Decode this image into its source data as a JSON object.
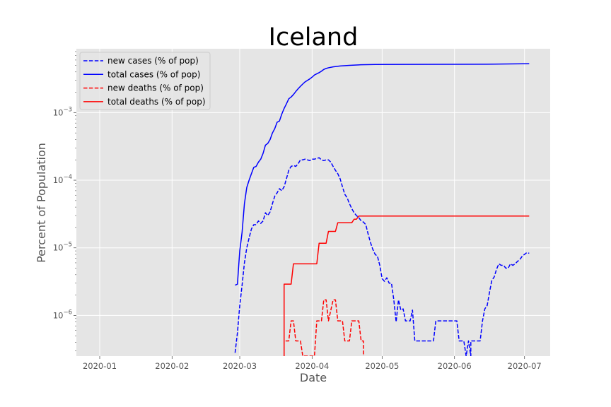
{
  "chart_data": {
    "type": "line",
    "title": "Iceland",
    "xlabel": "Date",
    "ylabel": "Percent of Population",
    "y_scale": "log",
    "grid": true,
    "legend_position": "top-left",
    "xlim": [
      "2019-12-22",
      "2020-07-12"
    ],
    "ylim": [
      2.5e-07,
      0.0088
    ],
    "x_ticks": [
      "2020-01",
      "2020-02",
      "2020-03",
      "2020-04",
      "2020-05",
      "2020-06",
      "2020-07"
    ],
    "y_ticks": [
      {
        "value": 1e-06,
        "base": "10",
        "exp": "−6"
      },
      {
        "value": 1e-05,
        "base": "10",
        "exp": "−5"
      },
      {
        "value": 0.0001,
        "base": "10",
        "exp": "−4"
      },
      {
        "value": 0.001,
        "base": "10",
        "exp": "−3"
      }
    ],
    "series": [
      {
        "name": "new cases (% of pop)",
        "color": "#0000ff",
        "dash": "dashed",
        "points": [
          [
            "2020-02-28",
            2.8e-07
          ],
          [
            "2020-02-29",
            5.5e-07
          ],
          [
            "2020-03-01",
            1.4e-06
          ],
          [
            "2020-03-02",
            2.8e-06
          ],
          [
            "2020-03-03",
            6e-06
          ],
          [
            "2020-03-04",
            1e-05
          ],
          [
            "2020-03-05",
            1.4e-05
          ],
          [
            "2020-03-06",
            1.9e-05
          ],
          [
            "2020-03-07",
            2.2e-05
          ],
          [
            "2020-03-08",
            2.2e-05
          ],
          [
            "2020-03-09",
            2.5e-05
          ],
          [
            "2020-03-10",
            2.3e-05
          ],
          [
            "2020-03-11",
            2.5e-05
          ],
          [
            "2020-03-12",
            3.3e-05
          ],
          [
            "2020-03-13",
            3e-05
          ],
          [
            "2020-03-14",
            3.4e-05
          ],
          [
            "2020-03-15",
            4.5e-05
          ],
          [
            "2020-03-16",
            5.8e-05
          ],
          [
            "2020-03-17",
            6.5e-05
          ],
          [
            "2020-03-18",
            7.5e-05
          ],
          [
            "2020-03-19",
            7e-05
          ],
          [
            "2020-03-20",
            8e-05
          ],
          [
            "2020-03-21",
            0.000105
          ],
          [
            "2020-03-22",
            0.00014
          ],
          [
            "2020-03-23",
            0.00016
          ],
          [
            "2020-03-24",
            0.000165
          ],
          [
            "2020-03-25",
            0.00016
          ],
          [
            "2020-03-26",
            0.000175
          ],
          [
            "2020-03-27",
            0.0002
          ],
          [
            "2020-03-28",
            0.0002
          ],
          [
            "2020-03-29",
            0.000205
          ],
          [
            "2020-03-30",
            0.0002
          ],
          [
            "2020-03-31",
            0.000195
          ],
          [
            "2020-04-01",
            0.000205
          ],
          [
            "2020-04-02",
            0.000205
          ],
          [
            "2020-04-03",
            0.00021
          ],
          [
            "2020-04-04",
            0.000215
          ],
          [
            "2020-04-05",
            0.0002
          ],
          [
            "2020-04-06",
            0.000195
          ],
          [
            "2020-04-07",
            0.0002
          ],
          [
            "2020-04-08",
            0.0002
          ],
          [
            "2020-04-09",
            0.000185
          ],
          [
            "2020-04-10",
            0.00016
          ],
          [
            "2020-04-11",
            0.00014
          ],
          [
            "2020-04-12",
            0.000125
          ],
          [
            "2020-04-13",
            0.000105
          ],
          [
            "2020-04-14",
            8e-05
          ],
          [
            "2020-04-15",
            6.2e-05
          ],
          [
            "2020-04-16",
            5.5e-05
          ],
          [
            "2020-04-17",
            4.5e-05
          ],
          [
            "2020-04-18",
            3.8e-05
          ],
          [
            "2020-04-19",
            3.3e-05
          ],
          [
            "2020-04-20",
            3e-05
          ],
          [
            "2020-04-21",
            2.8e-05
          ],
          [
            "2020-04-22",
            2.5e-05
          ],
          [
            "2020-04-23",
            2.4e-05
          ],
          [
            "2020-04-24",
            2.2e-05
          ],
          [
            "2020-04-25",
            1.6e-05
          ],
          [
            "2020-04-26",
            1.2e-05
          ],
          [
            "2020-04-27",
            9.5e-06
          ],
          [
            "2020-04-28",
            8e-06
          ],
          [
            "2020-04-29",
            7.5e-06
          ],
          [
            "2020-04-30",
            5.5e-06
          ],
          [
            "2020-05-01",
            3.5e-06
          ],
          [
            "2020-05-02",
            3.2e-06
          ],
          [
            "2020-05-03",
            3.6e-06
          ],
          [
            "2020-05-04",
            3e-06
          ],
          [
            "2020-05-05",
            3e-06
          ],
          [
            "2020-05-06",
            1.7e-06
          ],
          [
            "2020-05-07",
            8e-07
          ],
          [
            "2020-05-08",
            1.7e-06
          ],
          [
            "2020-05-09",
            1.2e-06
          ],
          [
            "2020-05-10",
            1.25e-06
          ],
          [
            "2020-05-11",
            8.3e-07
          ],
          [
            "2020-05-12",
            8.3e-07
          ],
          [
            "2020-05-13",
            8.3e-07
          ],
          [
            "2020-05-14",
            1.2e-06
          ],
          [
            "2020-05-15",
            4.2e-07
          ],
          [
            "2020-05-23",
            4.2e-07
          ],
          [
            "2020-05-24",
            8.3e-07
          ],
          [
            "2020-06-02",
            8.3e-07
          ],
          [
            "2020-06-03",
            4.2e-07
          ],
          [
            "2020-06-05",
            4.2e-07
          ],
          [
            "2020-06-06",
            2.5e-07
          ],
          [
            "2020-06-07",
            4.2e-07
          ],
          [
            "2020-06-08",
            2.5e-07
          ],
          [
            "2020-06-08",
            4.2e-07
          ],
          [
            "2020-06-12",
            4.2e-07
          ],
          [
            "2020-06-13",
            8.3e-07
          ],
          [
            "2020-06-14",
            1.25e-06
          ],
          [
            "2020-06-15",
            1.4e-06
          ],
          [
            "2020-06-16",
            2.2e-06
          ],
          [
            "2020-06-17",
            3.3e-06
          ],
          [
            "2020-06-18",
            3.7e-06
          ],
          [
            "2020-06-19",
            4.8e-06
          ],
          [
            "2020-06-20",
            5.8e-06
          ],
          [
            "2020-06-21",
            5.5e-06
          ],
          [
            "2020-06-22",
            5.5e-06
          ],
          [
            "2020-06-23",
            5e-06
          ],
          [
            "2020-06-24",
            5e-06
          ],
          [
            "2020-06-25",
            5.8e-06
          ],
          [
            "2020-06-26",
            5.5e-06
          ],
          [
            "2020-06-27",
            5.8e-06
          ],
          [
            "2020-06-28",
            6.3e-06
          ],
          [
            "2020-06-29",
            6.7e-06
          ],
          [
            "2020-06-30",
            7.5e-06
          ],
          [
            "2020-07-01",
            8e-06
          ],
          [
            "2020-07-02",
            8.5e-06
          ],
          [
            "2020-07-03",
            8.3e-06
          ]
        ]
      },
      {
        "name": "total cases (% of pop)",
        "color": "#0000ff",
        "dash": "solid",
        "points": [
          [
            "2020-02-28",
            2.8e-06
          ],
          [
            "2020-02-29",
            2.9e-06
          ],
          [
            "2020-03-01",
            9e-06
          ],
          [
            "2020-03-02",
            1.7e-05
          ],
          [
            "2020-03-03",
            4.5e-05
          ],
          [
            "2020-03-04",
            7.8e-05
          ],
          [
            "2020-03-05",
            0.0001
          ],
          [
            "2020-03-06",
            0.000125
          ],
          [
            "2020-03-07",
            0.000155
          ],
          [
            "2020-03-08",
            0.00016
          ],
          [
            "2020-03-09",
            0.000185
          ],
          [
            "2020-03-10",
            0.000205
          ],
          [
            "2020-03-11",
            0.00025
          ],
          [
            "2020-03-12",
            0.00033
          ],
          [
            "2020-03-13",
            0.00035
          ],
          [
            "2020-03-14",
            0.0004
          ],
          [
            "2020-03-15",
            0.0005
          ],
          [
            "2020-03-16",
            0.00058
          ],
          [
            "2020-03-17",
            0.00072
          ],
          [
            "2020-03-18",
            0.00075
          ],
          [
            "2020-03-19",
            0.00095
          ],
          [
            "2020-03-20",
            0.00115
          ],
          [
            "2020-03-21",
            0.00135
          ],
          [
            "2020-03-22",
            0.0016
          ],
          [
            "2020-03-23",
            0.0017
          ],
          [
            "2020-03-24",
            0.00185
          ],
          [
            "2020-03-25",
            0.00205
          ],
          [
            "2020-03-26",
            0.00225
          ],
          [
            "2020-03-27",
            0.00245
          ],
          [
            "2020-03-28",
            0.00265
          ],
          [
            "2020-03-29",
            0.00285
          ],
          [
            "2020-03-30",
            0.003
          ],
          [
            "2020-03-31",
            0.00315
          ],
          [
            "2020-04-01",
            0.00335
          ],
          [
            "2020-04-02",
            0.0036
          ],
          [
            "2020-04-03",
            0.00375
          ],
          [
            "2020-04-04",
            0.0039
          ],
          [
            "2020-04-05",
            0.0041
          ],
          [
            "2020-04-06",
            0.00435
          ],
          [
            "2020-04-07",
            0.0045
          ],
          [
            "2020-04-08",
            0.0046
          ],
          [
            "2020-04-10",
            0.00475
          ],
          [
            "2020-04-13",
            0.0049
          ],
          [
            "2020-04-17",
            0.005
          ],
          [
            "2020-04-22",
            0.0051
          ],
          [
            "2020-04-28",
            0.00515
          ],
          [
            "2020-05-10",
            0.00517
          ],
          [
            "2020-06-01",
            0.00518
          ],
          [
            "2020-06-15",
            0.0052
          ],
          [
            "2020-07-03",
            0.0053
          ]
        ]
      },
      {
        "name": "new deaths (% of pop)",
        "color": "#ff0000",
        "dash": "dashed",
        "points": [
          [
            "2020-03-20",
            2.5e-07
          ],
          [
            "2020-03-20",
            4.2e-07
          ],
          [
            "2020-03-22",
            4.2e-07
          ],
          [
            "2020-03-23",
            8.3e-07
          ],
          [
            "2020-03-24",
            8.3e-07
          ],
          [
            "2020-03-25",
            4.2e-07
          ],
          [
            "2020-03-27",
            4.2e-07
          ],
          [
            "2020-03-28",
            2.5e-07
          ],
          [
            "2020-04-02",
            2.5e-07
          ],
          [
            "2020-04-03",
            8.3e-07
          ],
          [
            "2020-04-05",
            8.3e-07
          ],
          [
            "2020-04-06",
            1.7e-06
          ],
          [
            "2020-04-07",
            1.7e-06
          ],
          [
            "2020-04-08",
            8.3e-07
          ],
          [
            "2020-04-10",
            1.7e-06
          ],
          [
            "2020-04-11",
            1.7e-06
          ],
          [
            "2020-04-12",
            8.3e-07
          ],
          [
            "2020-04-14",
            8.3e-07
          ],
          [
            "2020-04-15",
            4.2e-07
          ],
          [
            "2020-04-17",
            4.2e-07
          ],
          [
            "2020-04-18",
            8.3e-07
          ],
          [
            "2020-04-21",
            8.3e-07
          ],
          [
            "2020-04-22",
            4.2e-07
          ],
          [
            "2020-04-23",
            4.2e-07
          ],
          [
            "2020-04-23",
            2.5e-07
          ]
        ]
      },
      {
        "name": "total deaths (% of pop)",
        "color": "#ff0000",
        "dash": "solid",
        "points": [
          [
            "2020-03-20",
            2.5e-07
          ],
          [
            "2020-03-20",
            2.9e-06
          ],
          [
            "2020-03-23",
            2.9e-06
          ],
          [
            "2020-03-24",
            5.8e-06
          ],
          [
            "2020-04-03",
            5.8e-06
          ],
          [
            "2020-04-04",
            1.17e-05
          ],
          [
            "2020-04-07",
            1.17e-05
          ],
          [
            "2020-04-08",
            1.75e-05
          ],
          [
            "2020-04-11",
            1.75e-05
          ],
          [
            "2020-04-12",
            2.35e-05
          ],
          [
            "2020-04-18",
            2.35e-05
          ],
          [
            "2020-04-19",
            2.65e-05
          ],
          [
            "2020-04-20",
            2.65e-05
          ],
          [
            "2020-04-21",
            2.95e-05
          ],
          [
            "2020-07-03",
            2.95e-05
          ]
        ]
      }
    ]
  }
}
